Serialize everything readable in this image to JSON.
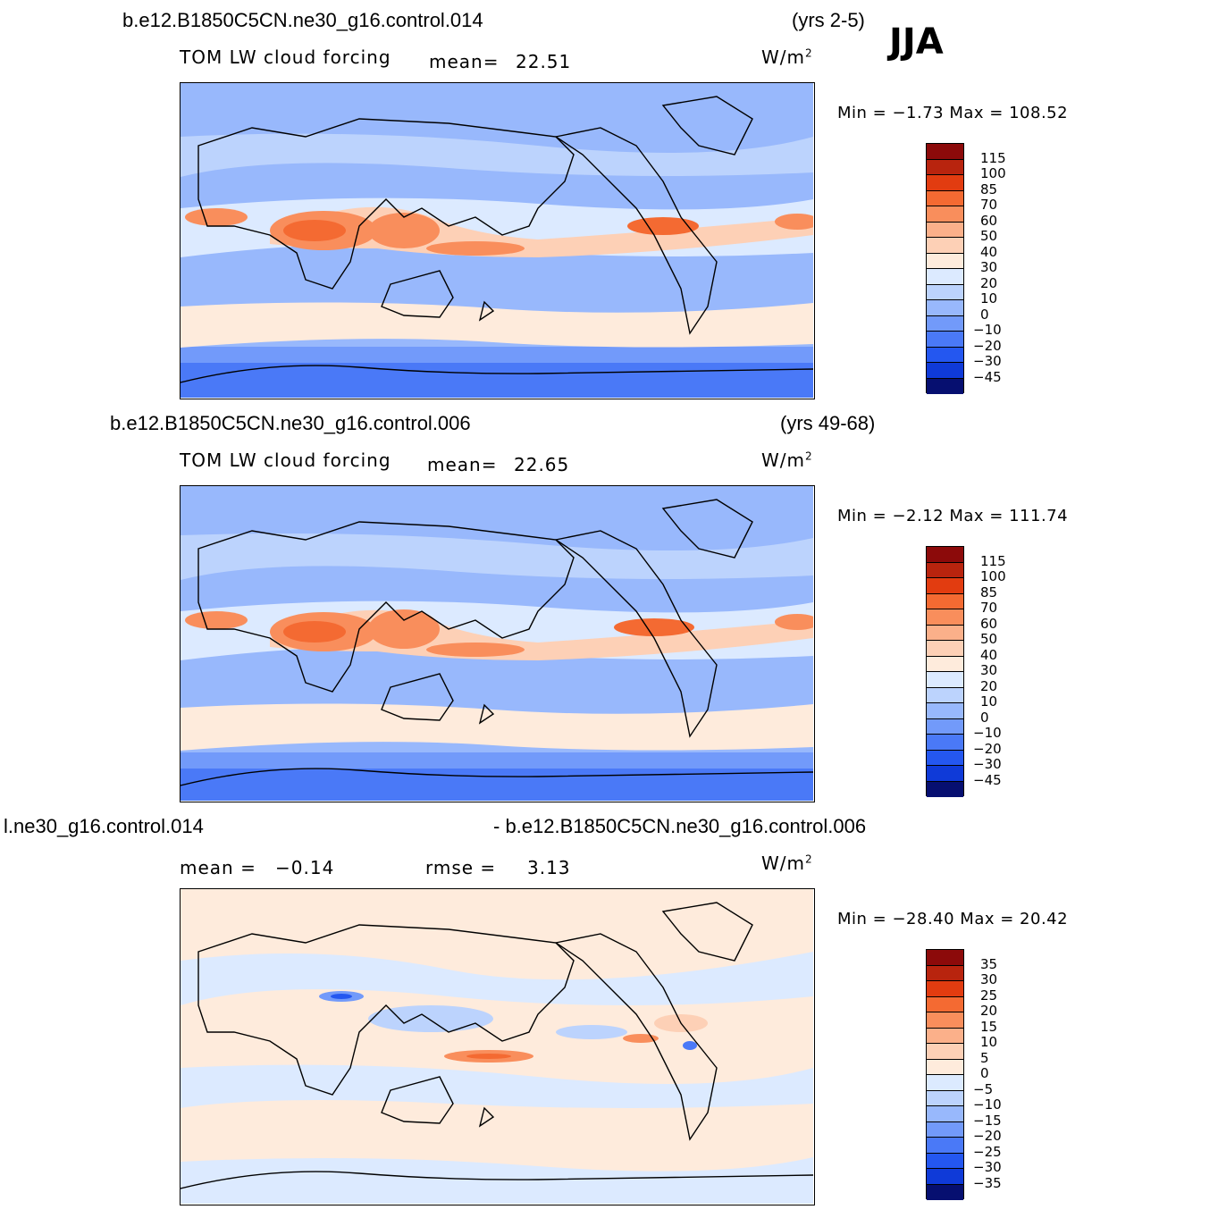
{
  "season": "JJA",
  "panels": [
    {
      "case": "b.e12.B1850C5CN.ne30_g16.control.014",
      "years": "(yrs 2-5)",
      "variable": "TOM  LW  cloud  forcing",
      "mean_label": "mean=",
      "mean_value": "22.51",
      "units": "W/m",
      "units_exp": "2",
      "minmax": "Min  =    −1.73  Max  =  108.52",
      "levels": [
        "115",
        "100",
        "85",
        "70",
        "60",
        "50",
        "40",
        "30",
        "20",
        "10",
        "0",
        "−10",
        "−20",
        "−30",
        "−45"
      ]
    },
    {
      "case": "b.e12.B1850C5CN.ne30_g16.control.006",
      "years": "(yrs 49-68)",
      "variable": "TOM  LW  cloud  forcing",
      "mean_label": "mean=",
      "mean_value": "22.65",
      "units": "W/m",
      "units_exp": "2",
      "minmax": "Min  =    −2.12  Max  =  111.74",
      "levels": [
        "115",
        "100",
        "85",
        "70",
        "60",
        "50",
        "40",
        "30",
        "20",
        "10",
        "0",
        "−10",
        "−20",
        "−30",
        "−45"
      ]
    },
    {
      "case_left": "l.ne30_g16.control.014",
      "case_right": "- b.e12.B1850C5CN.ne30_g16.control.006",
      "mean_label": "mean  =",
      "mean_value": "−0.14",
      "rmse_label": "rmse  =",
      "rmse_value": "3.13",
      "units": "W/m",
      "units_exp": "2",
      "minmax": "Min  = −28.40  Max  =    20.42",
      "levels": [
        "35",
        "30",
        "25",
        "20",
        "15",
        "10",
        "5",
        "0",
        "−5",
        "−10",
        "−15",
        "−20",
        "−25",
        "−30",
        "−35"
      ]
    }
  ],
  "colors": {
    "colorbar": [
      "#8c0a0a",
      "#b8240e",
      "#e23c10",
      "#f46a32",
      "#f98e5c",
      "#fbb08a",
      "#fdd0b6",
      "#feebdc",
      "#dceaff",
      "#bcd3fd",
      "#98b8fc",
      "#729afa",
      "#4a79f7",
      "#2457f0",
      "#0f3ad8",
      "#0a22a8",
      "#060f70"
    ],
    "field_base_lo": "#dceaff",
    "field_mid": "#98b8fc",
    "field_warm": "#fdd0b6",
    "field_hot": "#f46a32",
    "field_polar": "#4a79f7"
  }
}
